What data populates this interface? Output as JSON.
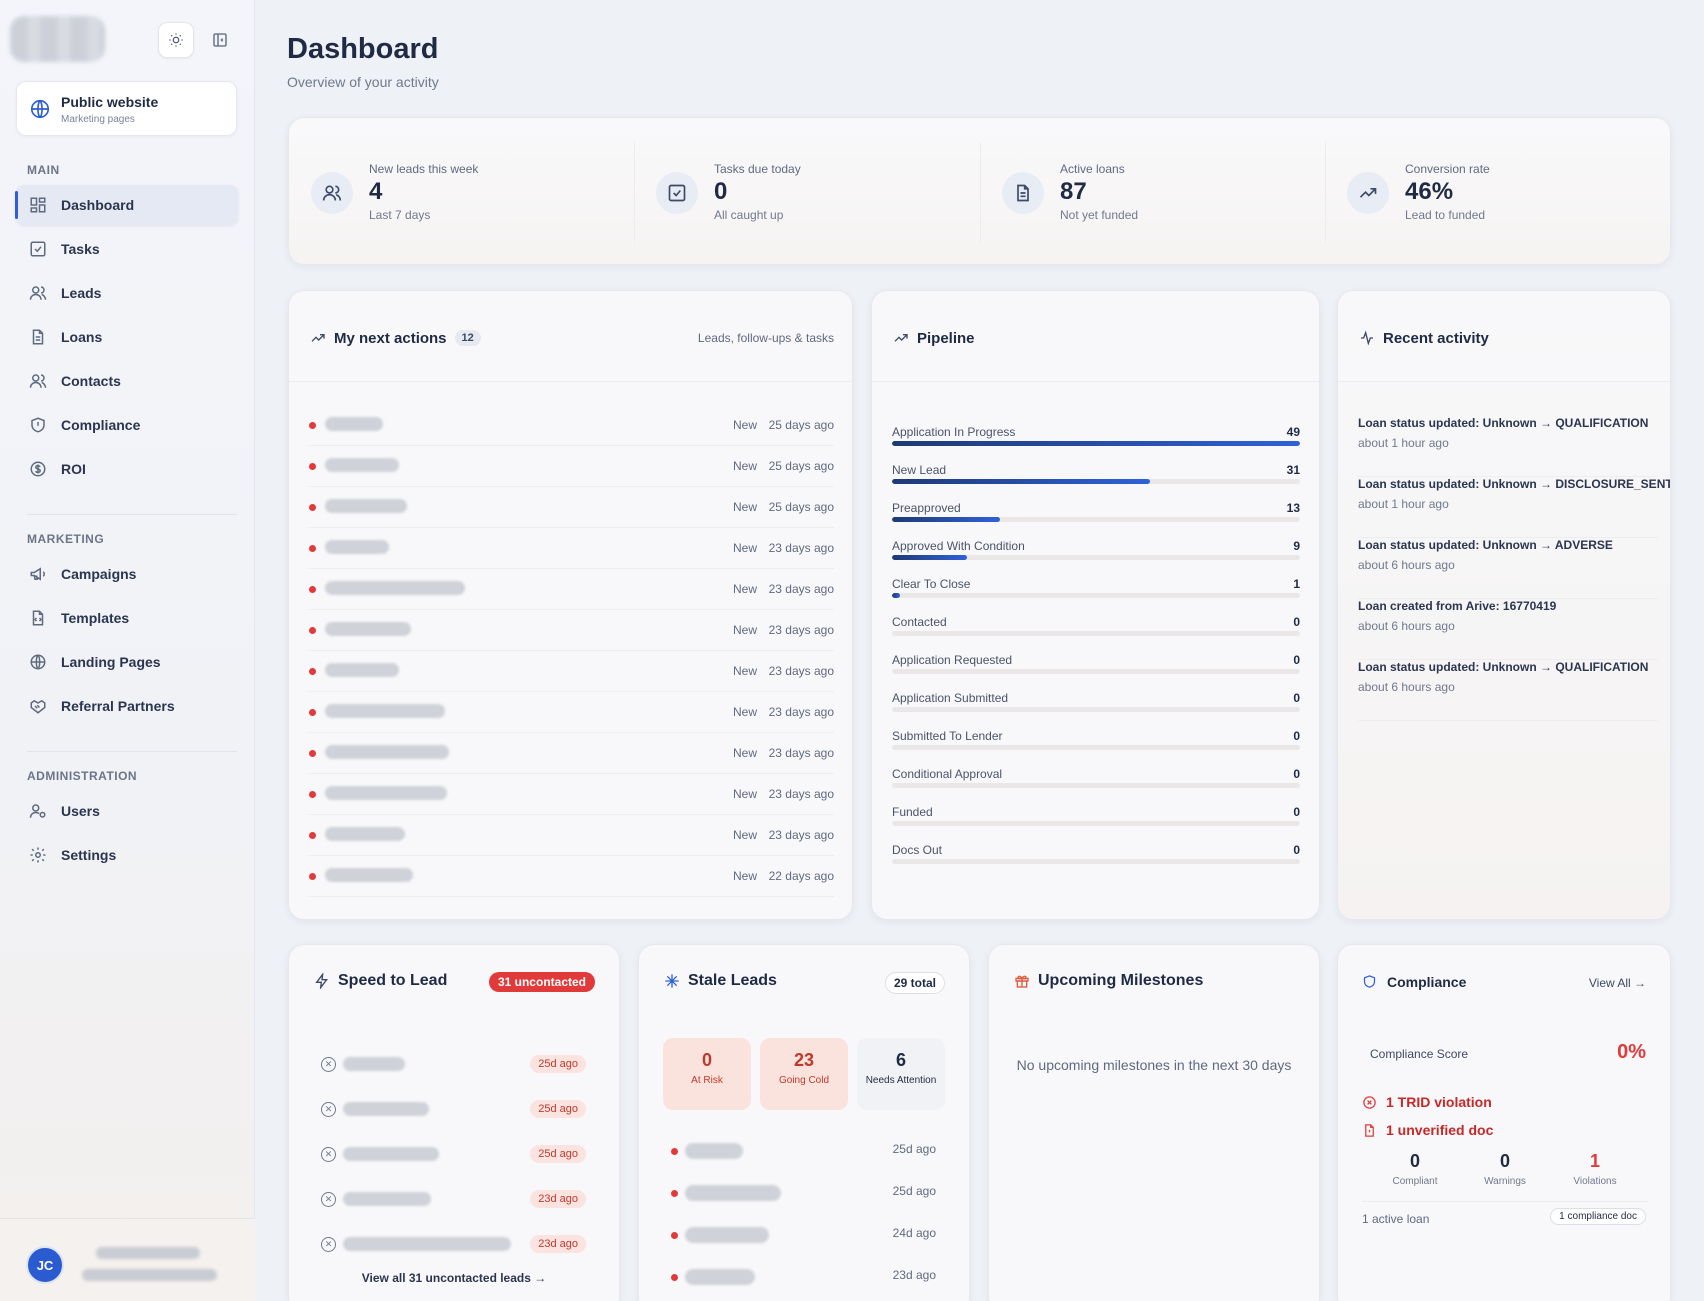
{
  "sidebar": {
    "public_site": {
      "title": "Public website",
      "subtitle": "Marketing pages",
      "icon": "globe-icon"
    },
    "sections": {
      "main": "MAIN",
      "marketing": "MARKETING",
      "administration": "ADMINISTRATION"
    },
    "main_items": [
      {
        "label": "Dashboard",
        "icon": "dashboard-icon",
        "active": true
      },
      {
        "label": "Tasks",
        "icon": "tasks-icon"
      },
      {
        "label": "Leads",
        "icon": "leads-icon"
      },
      {
        "label": "Loans",
        "icon": "loans-icon"
      },
      {
        "label": "Contacts",
        "icon": "contacts-icon"
      },
      {
        "label": "Compliance",
        "icon": "shield-icon"
      },
      {
        "label": "ROI",
        "icon": "dollar-icon"
      }
    ],
    "marketing_items": [
      {
        "label": "Campaigns",
        "icon": "megaphone-icon"
      },
      {
        "label": "Templates",
        "icon": "template-icon"
      },
      {
        "label": "Landing Pages",
        "icon": "globe-icon"
      },
      {
        "label": "Referral Partners",
        "icon": "handshake-icon"
      }
    ],
    "admin_items": [
      {
        "label": "Users",
        "icon": "users-icon"
      },
      {
        "label": "Settings",
        "icon": "gear-icon"
      }
    ],
    "user": {
      "initials": "JC"
    }
  },
  "header": {
    "title": "Dashboard",
    "subtitle": "Overview of your activity"
  },
  "stats": [
    {
      "label": "New leads this week",
      "value": "4",
      "sub": "Last 7 days",
      "icon": "users-icon"
    },
    {
      "label": "Tasks due today",
      "value": "0",
      "sub": "All caught up",
      "icon": "check-square-icon"
    },
    {
      "label": "Active loans",
      "value": "87",
      "sub": "Not yet funded",
      "icon": "document-icon"
    },
    {
      "label": "Conversion rate",
      "value": "46%",
      "sub": "Lead to funded",
      "icon": "trending-up-icon"
    }
  ],
  "next_actions": {
    "title": "My next actions",
    "count": "12",
    "subtitle": "Leads, follow-ups & tasks",
    "rows": [
      {
        "status": "New",
        "ago": "25 days ago"
      },
      {
        "status": "New",
        "ago": "25 days ago"
      },
      {
        "status": "New",
        "ago": "25 days ago"
      },
      {
        "status": "New",
        "ago": "23 days ago"
      },
      {
        "status": "New",
        "ago": "23 days ago"
      },
      {
        "status": "New",
        "ago": "23 days ago"
      },
      {
        "status": "New",
        "ago": "23 days ago"
      },
      {
        "status": "New",
        "ago": "23 days ago"
      },
      {
        "status": "New",
        "ago": "23 days ago"
      },
      {
        "status": "New",
        "ago": "23 days ago"
      },
      {
        "status": "New",
        "ago": "23 days ago"
      },
      {
        "status": "New",
        "ago": "22 days ago"
      }
    ]
  },
  "pipeline": {
    "title": "Pipeline",
    "max": 49,
    "stages": [
      {
        "name": "Application In Progress",
        "value": 49
      },
      {
        "name": "New Lead",
        "value": 31
      },
      {
        "name": "Preapproved",
        "value": 13
      },
      {
        "name": "Approved With Condition",
        "value": 9
      },
      {
        "name": "Clear To Close",
        "value": 1
      },
      {
        "name": "Contacted",
        "value": 0
      },
      {
        "name": "Application Requested",
        "value": 0
      },
      {
        "name": "Application Submitted",
        "value": 0
      },
      {
        "name": "Submitted To Lender",
        "value": 0
      },
      {
        "name": "Conditional Approval",
        "value": 0
      },
      {
        "name": "Funded",
        "value": 0
      },
      {
        "name": "Docs Out",
        "value": 0
      }
    ]
  },
  "recent_activity": {
    "title": "Recent activity",
    "items": [
      {
        "text": "Loan status updated: Unknown → QUALIFICATION",
        "time": "about 1 hour ago"
      },
      {
        "text": "Loan status updated: Unknown → DISCLOSURE_SENT",
        "time": "about 1 hour ago"
      },
      {
        "text": "Loan status updated: Unknown → ADVERSE",
        "time": "about 6 hours ago"
      },
      {
        "text": "Loan created from Arive: 16770419",
        "time": "about 6 hours ago"
      },
      {
        "text": "Loan status updated: Unknown → QUALIFICATION",
        "time": "about 6 hours ago"
      }
    ]
  },
  "speed_to_lead": {
    "title": "Speed to Lead",
    "badge": "31 uncontacted",
    "rows": [
      {
        "ago": "25d ago"
      },
      {
        "ago": "25d ago"
      },
      {
        "ago": "25d ago"
      },
      {
        "ago": "23d ago"
      },
      {
        "ago": "23d ago"
      }
    ],
    "view_all": "View all 31 uncontacted leads →"
  },
  "stale_leads": {
    "title": "Stale Leads",
    "badge": "29 total",
    "boxes": [
      {
        "value": "0",
        "label": "At Risk",
        "bg": "#fbe3dd",
        "color": "#c0392b"
      },
      {
        "value": "23",
        "label": "Going Cold",
        "bg": "#fbe3dd",
        "color": "#c0392b"
      },
      {
        "value": "6",
        "label": "Needs Attention",
        "bg": "#f1f2f5",
        "color": "#1f2a44"
      }
    ],
    "rows": [
      {
        "ago": "25d ago"
      },
      {
        "ago": "25d ago"
      },
      {
        "ago": "24d ago"
      },
      {
        "ago": "23d ago"
      }
    ]
  },
  "milestones": {
    "title": "Upcoming Milestones",
    "empty": "No upcoming milestones in the next 30 days"
  },
  "compliance": {
    "title": "Compliance",
    "view_all": "View All →",
    "score_label": "Compliance Score",
    "score": "0%",
    "issues": [
      {
        "text": "1 TRID violation",
        "icon": "x-circle-icon"
      },
      {
        "text": "1 unverified doc",
        "icon": "document-alert-icon"
      }
    ],
    "stats": [
      {
        "value": "0",
        "label": "Compliant",
        "color": "#1f2a44"
      },
      {
        "value": "0",
        "label": "Warnings",
        "color": "#1f2a44"
      },
      {
        "value": "1",
        "label": "Violations",
        "color": "#e03a3a"
      }
    ],
    "footer_left": "1 active loan",
    "footer_right": "1 compliance doc"
  },
  "colors": {
    "accent": "#2f5fd8",
    "danger": "#e03a3a"
  }
}
